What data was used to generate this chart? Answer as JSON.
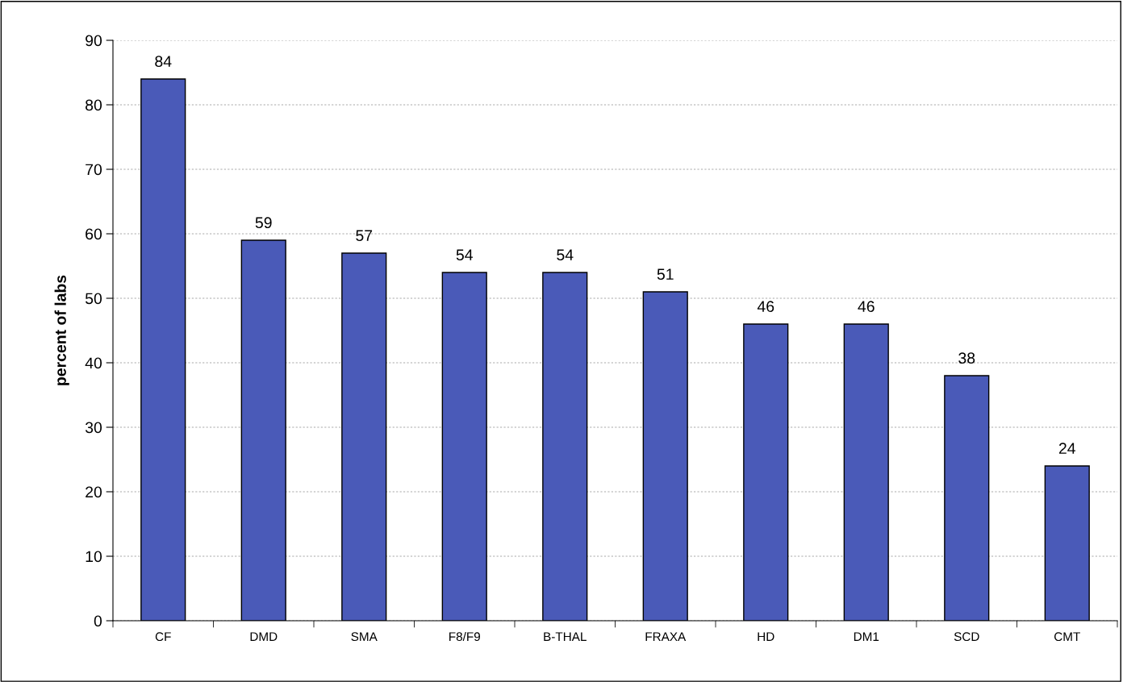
{
  "chart_data": {
    "type": "bar",
    "ylabel": "percent of labs",
    "categories": [
      "CF",
      "DMD",
      "SMA",
      "F8/F9",
      "B-THAL",
      "FRAXA",
      "HD",
      "DM1",
      "SCD",
      "CMT"
    ],
    "values": [
      84,
      59,
      57,
      54,
      54,
      51,
      46,
      46,
      38,
      24
    ],
    "color": "#4a5ab8",
    "ylim": [
      0,
      90
    ],
    "yticks": [
      0,
      10,
      20,
      30,
      40,
      50,
      60,
      70,
      80,
      90
    ],
    "grid": "y",
    "data_labels": true
  }
}
